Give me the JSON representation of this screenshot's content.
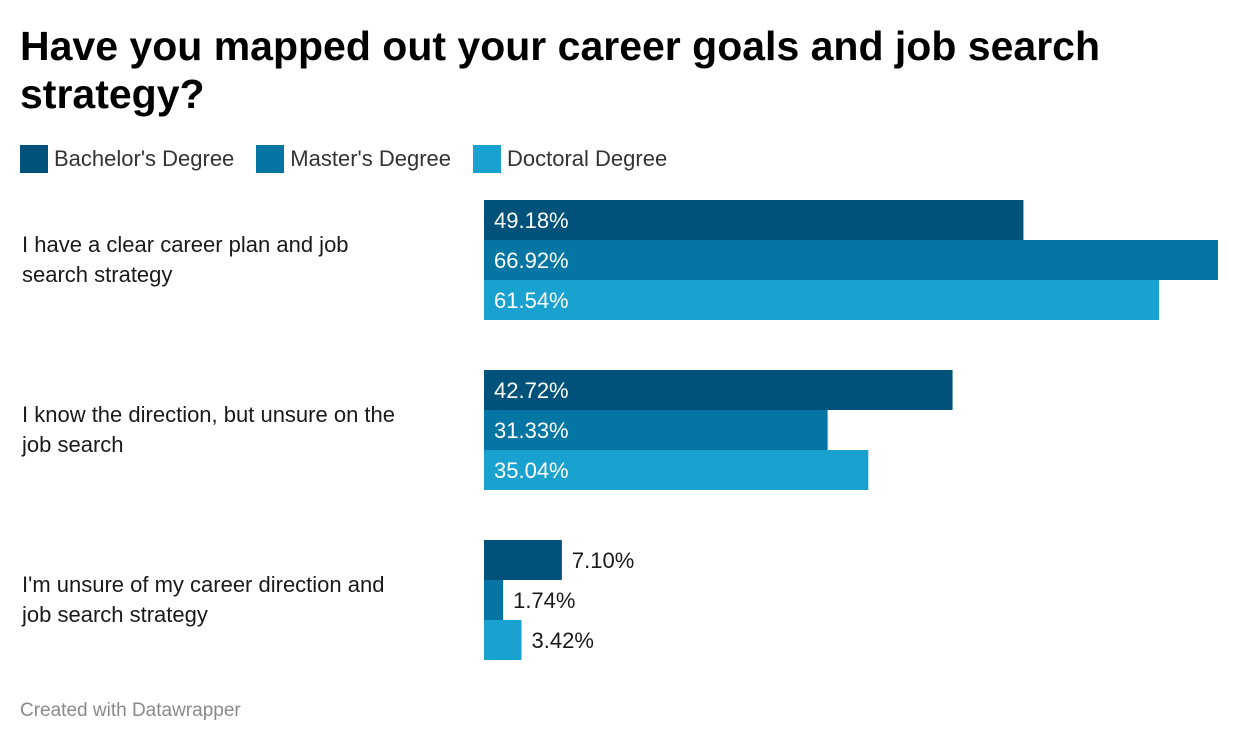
{
  "chart_data": {
    "type": "bar",
    "orientation": "horizontal",
    "title": "Have you mapped out your career goals and job search strategy?",
    "categories": [
      "I have a clear career plan and job search strategy",
      "I know the direction, but unsure on the job search",
      "I'm unsure of my career direction and job search strategy"
    ],
    "series": [
      {
        "name": "Bachelor's Degree",
        "color": "#00527a",
        "values": [
          49.18,
          42.72,
          7.1
        ],
        "labels": [
          "49.18%",
          "42.72%",
          "7.10%"
        ]
      },
      {
        "name": "Master's Degree",
        "color": "#0576a3",
        "values": [
          66.92,
          31.33,
          1.74
        ],
        "labels": [
          "66.92%",
          "31.33%",
          "1.74%"
        ]
      },
      {
        "name": "Doctoral Degree",
        "color": "#19a1d0",
        "values": [
          61.54,
          35.04,
          3.42
        ],
        "labels": [
          "61.54%",
          "35.04%",
          "3.42%"
        ]
      }
    ],
    "xlim": [
      0,
      66.92
    ],
    "grid": false,
    "legend_position": "top-left"
  },
  "footer": {
    "credit": "Created with Datawrapper"
  }
}
